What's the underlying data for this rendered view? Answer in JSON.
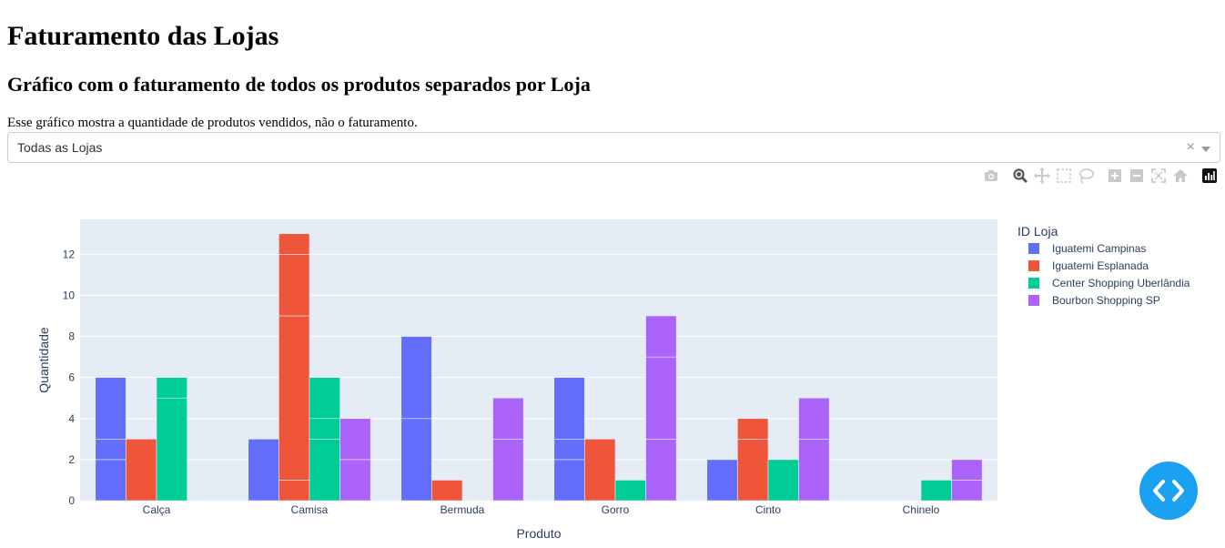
{
  "page": {
    "title": "Faturamento das Lojas",
    "subtitle": "Gráfico com o faturamento de todos os produtos separados por Loja",
    "description": "Esse gráfico mostra a quantidade de produtos vendidos, não o faturamento."
  },
  "dropdown": {
    "selected": "Todas as Lojas",
    "clear_symbol": "×"
  },
  "modebar": {
    "icons": [
      "camera-icon",
      "zoom-icon",
      "pan-icon",
      "box-select-icon",
      "lasso-select-icon",
      "zoom-in-icon",
      "zoom-out-icon",
      "autoscale-icon",
      "reset-axes-icon",
      "plotly-logo"
    ]
  },
  "chart_data": {
    "type": "bar",
    "barmode": "group",
    "categories": [
      "Calça",
      "Camisa",
      "Bermuda",
      "Gorro",
      "Cinto",
      "Chinelo"
    ],
    "xlabel": "Produto",
    "ylabel": "Quantidade",
    "ylim": [
      0,
      13.7
    ],
    "yticks": [
      0,
      2,
      4,
      6,
      8,
      10,
      12
    ],
    "legend_title": "ID Loja",
    "legend_position": "top-right",
    "grid": true,
    "background": "#e5ecf6",
    "series": [
      {
        "name": "Iguatemi Campinas",
        "color": "#636efa",
        "values": [
          6,
          3,
          8,
          6,
          2,
          0
        ],
        "segments": [
          [
            2,
            1,
            3
          ],
          [
            3
          ],
          [
            4,
            4
          ],
          [
            2,
            1,
            3
          ],
          [
            2
          ],
          []
        ]
      },
      {
        "name": "Iguatemi Esplanada",
        "color": "#ef553b",
        "values": [
          3,
          13,
          1,
          3,
          4,
          0
        ],
        "segments": [
          [
            3
          ],
          [
            1,
            8,
            3,
            1
          ],
          [
            1
          ],
          [
            3
          ],
          [
            3,
            1
          ],
          []
        ]
      },
      {
        "name": "Center Shopping Uberlândia",
        "color": "#00cc96",
        "values": [
          6,
          6,
          0,
          1,
          2,
          1
        ],
        "segments": [
          [
            5,
            1
          ],
          [
            3,
            1,
            2
          ],
          [],
          [
            1
          ],
          [
            2
          ],
          [
            1
          ]
        ]
      },
      {
        "name": "Bourbon Shopping SP",
        "color": "#ab63fa",
        "values": [
          0,
          4,
          5,
          9,
          5,
          2
        ],
        "segments": [
          [],
          [
            2,
            2
          ],
          [
            3,
            2
          ],
          [
            3,
            4,
            2
          ],
          [
            3,
            2
          ],
          [
            1,
            1
          ]
        ]
      }
    ]
  },
  "fab": {
    "icon": "code-icon"
  }
}
